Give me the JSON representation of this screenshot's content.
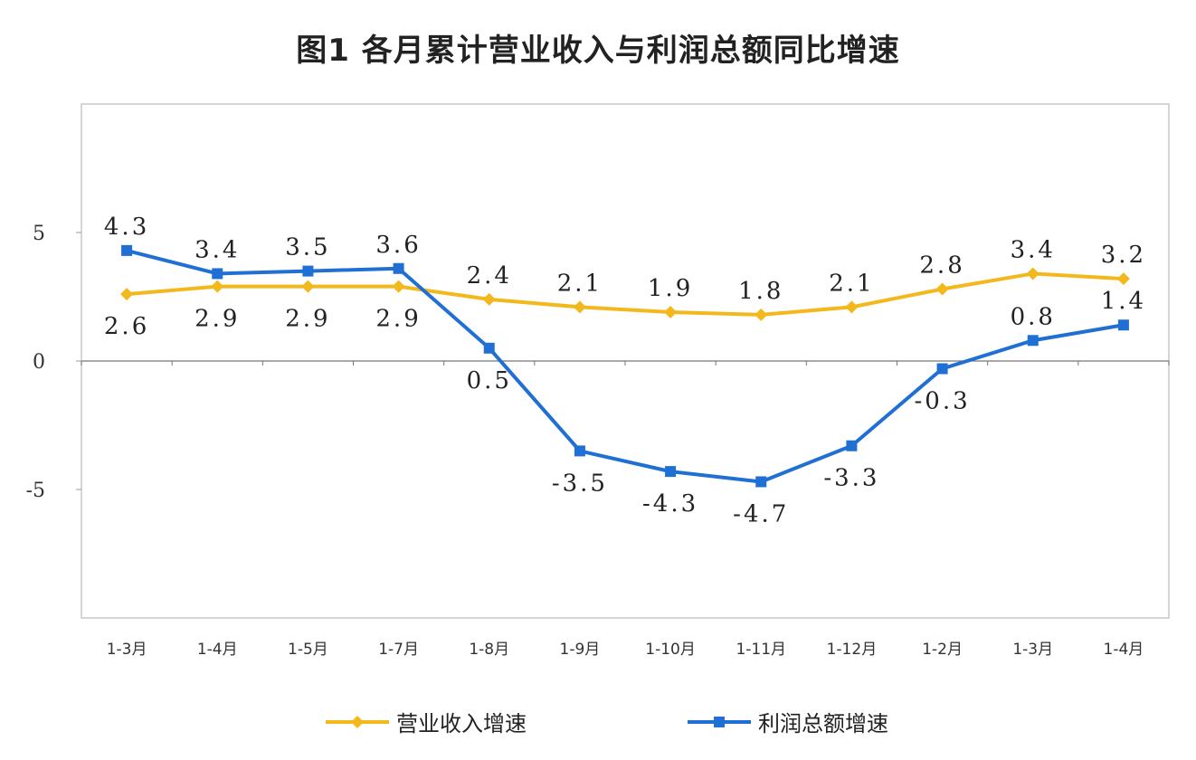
{
  "chart_data": {
    "type": "line",
    "title": "图1  各月累计营业收入与利润总额同比增速",
    "categories": [
      "1-3月",
      "1-4月",
      "1-5月",
      "1-7月",
      "1-8月",
      "1-9月",
      "1-10月",
      "1-11月",
      "1-12月",
      "1-2月",
      "1-3月",
      "1-4月"
    ],
    "ylim": [
      -10,
      10
    ],
    "yticks": [
      5,
      0,
      -5
    ],
    "grid": false,
    "legend_position": "bottom",
    "series": [
      {
        "name": "营业收入增速",
        "color": "#F2B81C",
        "marker": "diamond",
        "values": [
          2.6,
          2.9,
          2.9,
          2.9,
          2.4,
          2.1,
          1.9,
          1.8,
          2.1,
          2.8,
          3.4,
          3.2
        ],
        "labels": [
          "2.6",
          "2.9",
          "2.9",
          "2.9",
          "2.4",
          "2.1",
          "1.9",
          "1.8",
          "2.1",
          "2.8",
          "3.4",
          "3.2"
        ]
      },
      {
        "name": "利润总额增速",
        "color": "#1F6FD4",
        "marker": "square",
        "values": [
          4.3,
          3.4,
          3.5,
          3.6,
          0.5,
          -3.5,
          -4.3,
          -4.7,
          -3.3,
          -0.3,
          0.8,
          1.4
        ],
        "labels": [
          "4.3",
          "3.4",
          "3.5",
          "3.6",
          "0.5",
          "-3.5",
          "-4.3",
          "-4.7",
          "-3.3",
          "-0.3",
          "0.8",
          "1.4"
        ]
      }
    ]
  }
}
